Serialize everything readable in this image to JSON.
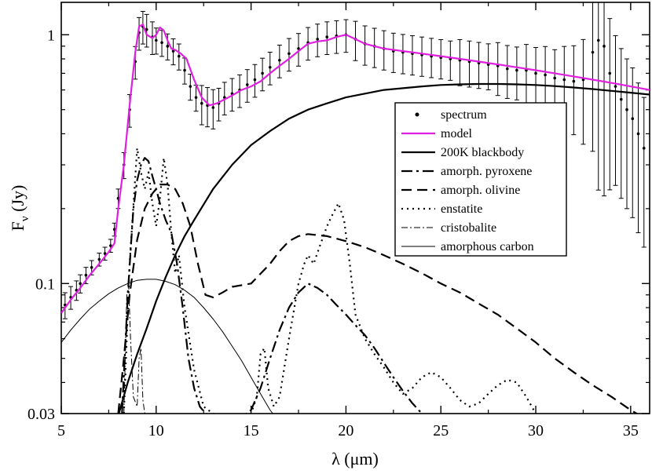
{
  "chart_data": {
    "type": "line",
    "title": "",
    "xlabel": "λ (μm)",
    "ylabel": "Fν (Jy)",
    "ylabel_main": "F",
    "ylabel_sub": "ν",
    "ylabel_unit": " (Jy)",
    "xscale": "linear",
    "yscale": "log",
    "xlim": [
      5,
      36
    ],
    "ylim": [
      0.03,
      1.35
    ],
    "x_ticks": [
      5,
      10,
      15,
      20,
      25,
      30,
      35
    ],
    "x_tick_labels": [
      "5",
      "10",
      "15",
      "20",
      "25",
      "30",
      "35"
    ],
    "y_ticks": [
      0.03,
      0.1,
      1
    ],
    "y_tick_labels": [
      "0.03",
      "0.1",
      "1"
    ],
    "legend_position": "upper-right-inside",
    "legend": [
      {
        "label": "spectrum",
        "style": "points",
        "color": "#000000"
      },
      {
        "label": "model",
        "style": "solid",
        "color": "#e020e0"
      },
      {
        "label": "200K blackbody",
        "style": "solid",
        "color": "#000000"
      },
      {
        "label": "amorph. pyroxene",
        "style": "dashdot",
        "color": "#000000"
      },
      {
        "label": "amorph. olivine",
        "style": "dashed",
        "color": "#000000"
      },
      {
        "label": "enstatite",
        "style": "dotted",
        "color": "#000000"
      },
      {
        "label": "cristobalite",
        "style": "thin-dashdot",
        "color": "#000000"
      },
      {
        "label": "amorphous carbon",
        "style": "thin-solid",
        "color": "#000000"
      }
    ],
    "series": [
      {
        "name": "spectrum",
        "style": "points",
        "color": "#000000",
        "x": [
          5.2,
          5.5,
          5.8,
          6.0,
          6.3,
          6.6,
          7.0,
          7.3,
          7.6,
          7.8,
          8.0,
          8.3,
          8.6,
          8.9,
          9.1,
          9.3,
          9.5,
          9.8,
          10.0,
          10.3,
          10.6,
          10.9,
          11.2,
          11.5,
          11.8,
          12.1,
          12.4,
          12.7,
          13.0,
          13.3,
          13.6,
          14.0,
          14.4,
          14.8,
          15.2,
          15.6,
          16.0,
          16.5,
          17.0,
          17.5,
          18.0,
          18.5,
          19.0,
          19.5,
          20.0,
          20.5,
          21.0,
          21.5,
          22.0,
          22.5,
          23.0,
          23.5,
          24.0,
          24.5,
          25.0,
          25.5,
          26.0,
          26.5,
          27.0,
          27.5,
          28.0,
          28.5,
          29.0,
          29.5,
          30.0,
          30.5,
          31.0,
          31.5,
          32.0,
          32.5,
          33.0,
          33.3,
          33.6,
          33.9,
          34.2,
          34.5,
          34.8,
          35.1,
          35.4,
          35.7
        ],
        "y": [
          0.082,
          0.088,
          0.094,
          0.1,
          0.108,
          0.116,
          0.125,
          0.132,
          0.142,
          0.165,
          0.22,
          0.3,
          0.5,
          0.78,
          1.02,
          1.08,
          1.05,
          0.98,
          0.95,
          0.93,
          0.9,
          0.86,
          0.82,
          0.72,
          0.62,
          0.56,
          0.53,
          0.52,
          0.51,
          0.53,
          0.56,
          0.58,
          0.6,
          0.63,
          0.66,
          0.7,
          0.74,
          0.79,
          0.84,
          0.88,
          0.93,
          0.96,
          0.98,
          0.99,
          1.0,
          0.96,
          0.92,
          0.9,
          0.88,
          0.86,
          0.85,
          0.84,
          0.83,
          0.82,
          0.81,
          0.8,
          0.79,
          0.78,
          0.77,
          0.76,
          0.75,
          0.73,
          0.72,
          0.72,
          0.7,
          0.69,
          0.67,
          0.66,
          0.65,
          0.66,
          0.85,
          0.95,
          0.9,
          0.7,
          0.62,
          0.55,
          0.5,
          0.46,
          0.4,
          0.35
        ],
        "err": [
          0.04,
          0.035,
          0.03,
          0.028,
          0.025,
          0.022,
          0.02,
          0.02,
          0.02,
          0.02,
          0.03,
          0.04,
          0.05,
          0.05,
          0.05,
          0.05,
          0.05,
          0.05,
          0.04,
          0.04,
          0.04,
          0.04,
          0.04,
          0.04,
          0.04,
          0.04,
          0.06,
          0.06,
          0.06,
          0.05,
          0.05,
          0.05,
          0.05,
          0.05,
          0.05,
          0.05,
          0.05,
          0.05,
          0.05,
          0.05,
          0.05,
          0.05,
          0.05,
          0.05,
          0.05,
          0.06,
          0.06,
          0.06,
          0.06,
          0.06,
          0.06,
          0.06,
          0.06,
          0.06,
          0.06,
          0.06,
          0.07,
          0.07,
          0.07,
          0.07,
          0.08,
          0.08,
          0.08,
          0.09,
          0.09,
          0.1,
          0.1,
          0.12,
          0.13,
          0.15,
          0.2,
          0.25,
          0.25,
          0.22,
          0.2,
          0.2,
          0.2,
          0.2,
          0.2,
          0.2
        ]
      },
      {
        "name": "model",
        "style": "solid",
        "color": "#e020e0",
        "x": [
          5.0,
          5.5,
          6.0,
          6.5,
          7.0,
          7.5,
          7.8,
          8.0,
          8.3,
          8.6,
          8.9,
          9.1,
          9.3,
          9.5,
          9.8,
          10.0,
          10.2,
          10.4,
          10.6,
          10.8,
          11.0,
          11.3,
          11.6,
          12.0,
          12.4,
          12.8,
          13.2,
          13.6,
          14.0,
          14.5,
          15.0,
          15.5,
          16.0,
          16.5,
          17.0,
          17.5,
          18.0,
          18.5,
          19.0,
          19.5,
          20.0,
          20.5,
          21.0,
          22.0,
          23.0,
          24.0,
          25.0,
          26.0,
          27.0,
          28.0,
          29.0,
          30.0,
          31.0,
          32.0,
          33.0,
          34.0,
          35.0,
          36.0
        ],
        "y": [
          0.076,
          0.086,
          0.096,
          0.108,
          0.12,
          0.134,
          0.145,
          0.2,
          0.3,
          0.52,
          0.85,
          1.08,
          1.1,
          1.0,
          0.97,
          1.0,
          1.07,
          1.04,
          0.95,
          0.88,
          0.87,
          0.84,
          0.8,
          0.66,
          0.56,
          0.52,
          0.53,
          0.55,
          0.57,
          0.6,
          0.62,
          0.65,
          0.7,
          0.75,
          0.8,
          0.86,
          0.92,
          0.94,
          0.95,
          0.98,
          1.0,
          0.96,
          0.92,
          0.88,
          0.86,
          0.84,
          0.82,
          0.8,
          0.78,
          0.76,
          0.74,
          0.72,
          0.7,
          0.68,
          0.66,
          0.64,
          0.62,
          0.6
        ]
      },
      {
        "name": "200K blackbody",
        "style": "solid",
        "color": "#000000",
        "x": [
          7.8,
          8.5,
          9.0,
          9.5,
          10.0,
          10.5,
          11.0,
          11.5,
          12.0,
          13.0,
          14.0,
          15.0,
          16.0,
          17.0,
          18.0,
          19.0,
          20.0,
          21.0,
          22.0,
          23.0,
          24.0,
          25.0,
          26.0,
          27.0,
          28.0,
          29.0,
          30.0,
          31.0,
          32.0,
          33.0,
          34.0,
          35.0,
          36.0
        ],
        "y": [
          0.026,
          0.04,
          0.052,
          0.066,
          0.085,
          0.106,
          0.13,
          0.155,
          0.18,
          0.24,
          0.3,
          0.36,
          0.41,
          0.46,
          0.5,
          0.53,
          0.56,
          0.58,
          0.6,
          0.61,
          0.62,
          0.628,
          0.632,
          0.634,
          0.634,
          0.632,
          0.628,
          0.622,
          0.614,
          0.605,
          0.595,
          0.585,
          0.575
        ]
      },
      {
        "name": "amorph. pyroxene",
        "style": "dashdot",
        "color": "#000000",
        "x": [
          8.2,
          8.5,
          8.8,
          9.0,
          9.2,
          9.4,
          9.6,
          9.8,
          10.0,
          10.2,
          10.5,
          10.8,
          11.1,
          11.4,
          11.7,
          12.0,
          12.3,
          12.6,
          13.0,
          13.5,
          14.0,
          14.5,
          15.0,
          15.5,
          16.0,
          16.5,
          17.0,
          17.5,
          18.0,
          18.5,
          19.0,
          19.5,
          20.0,
          20.5,
          21.0,
          21.5,
          22.0,
          22.5,
          23.0,
          23.5,
          24.0
        ],
        "y": [
          0.03,
          0.09,
          0.2,
          0.26,
          0.3,
          0.32,
          0.31,
          0.27,
          0.24,
          0.21,
          0.18,
          0.16,
          0.12,
          0.08,
          0.05,
          0.038,
          0.032,
          0.03,
          0.029,
          0.028,
          0.028,
          0.029,
          0.031,
          0.038,
          0.05,
          0.065,
          0.08,
          0.092,
          0.1,
          0.096,
          0.09,
          0.082,
          0.075,
          0.068,
          0.062,
          0.055,
          0.048,
          0.042,
          0.037,
          0.033,
          0.03
        ]
      },
      {
        "name": "amorph. olivine",
        "style": "dashed",
        "color": "#000000",
        "x": [
          8.0,
          8.3,
          8.6,
          9.0,
          9.4,
          9.8,
          10.2,
          10.6,
          11.0,
          11.4,
          11.8,
          12.2,
          12.6,
          13.0,
          13.5,
          14.0,
          15.0,
          16.0,
          16.5,
          17.0,
          17.5,
          18.0,
          19.0,
          20.0,
          21.0,
          22.0,
          23.0,
          24.0,
          25.0,
          26.0,
          27.0,
          28.0,
          29.0,
          30.0,
          31.0,
          32.0,
          33.0,
          34.0,
          35.0,
          36.0
        ],
        "y": [
          0.03,
          0.05,
          0.09,
          0.15,
          0.2,
          0.23,
          0.25,
          0.25,
          0.24,
          0.21,
          0.17,
          0.12,
          0.09,
          0.088,
          0.092,
          0.097,
          0.1,
          0.12,
          0.135,
          0.148,
          0.155,
          0.158,
          0.155,
          0.148,
          0.14,
          0.13,
          0.12,
          0.11,
          0.1,
          0.092,
          0.083,
          0.075,
          0.066,
          0.058,
          0.05,
          0.044,
          0.039,
          0.035,
          0.031,
          0.028
        ]
      },
      {
        "name": "enstatite",
        "style": "dotted",
        "color": "#000000",
        "x": [
          8.3,
          8.6,
          9.0,
          9.2,
          9.4,
          9.6,
          9.8,
          10.0,
          10.2,
          10.4,
          10.6,
          10.8,
          11.0,
          11.2,
          11.5,
          12.0,
          12.5,
          13.0,
          13.5,
          14.0,
          14.5,
          15.0,
          15.3,
          15.5,
          15.7,
          15.9,
          16.2,
          16.5,
          17.0,
          17.5,
          17.8,
          18.0,
          18.3,
          18.6,
          19.0,
          19.3,
          19.6,
          19.9,
          20.2,
          20.5,
          21.0,
          21.5,
          22.0,
          22.5,
          23.0,
          23.5,
          24.0,
          24.5,
          25.0,
          25.5,
          26.0,
          26.5,
          27.0,
          27.5,
          28.0,
          28.5,
          29.0,
          29.5,
          30.0
        ],
        "y": [
          0.03,
          0.12,
          0.35,
          0.28,
          0.24,
          0.28,
          0.21,
          0.17,
          0.22,
          0.32,
          0.25,
          0.16,
          0.11,
          0.13,
          0.08,
          0.045,
          0.032,
          0.03,
          0.029,
          0.029,
          0.029,
          0.03,
          0.035,
          0.052,
          0.055,
          0.038,
          0.032,
          0.035,
          0.06,
          0.1,
          0.12,
          0.13,
          0.12,
          0.14,
          0.17,
          0.19,
          0.21,
          0.18,
          0.12,
          0.075,
          0.06,
          0.052,
          0.046,
          0.04,
          0.036,
          0.038,
          0.042,
          0.044,
          0.042,
          0.038,
          0.034,
          0.032,
          0.033,
          0.036,
          0.039,
          0.041,
          0.04,
          0.035,
          0.03
        ]
      },
      {
        "name": "cristobalite",
        "style": "thin-dashdot",
        "color": "#000000",
        "x": [
          8.3,
          8.45,
          8.55,
          8.65,
          8.8,
          9.0,
          9.1,
          9.2,
          9.3,
          9.4
        ],
        "y": [
          0.03,
          0.09,
          0.098,
          0.06,
          0.035,
          0.032,
          0.05,
          0.055,
          0.034,
          0.03
        ]
      },
      {
        "name": "amorphous carbon",
        "style": "thin-solid",
        "color": "#000000",
        "x": [
          5.0,
          5.5,
          6.0,
          6.5,
          7.0,
          7.5,
          8.0,
          8.5,
          9.0,
          9.5,
          10.0,
          10.5,
          11.0,
          11.5,
          12.0,
          12.5,
          13.0,
          13.5,
          14.0,
          14.5,
          15.0,
          15.5,
          16.0,
          16.3
        ],
        "y": [
          0.058,
          0.065,
          0.072,
          0.079,
          0.085,
          0.091,
          0.096,
          0.1,
          0.103,
          0.104,
          0.104,
          0.102,
          0.099,
          0.094,
          0.088,
          0.08,
          0.072,
          0.064,
          0.056,
          0.049,
          0.042,
          0.036,
          0.031,
          0.029
        ]
      }
    ]
  }
}
